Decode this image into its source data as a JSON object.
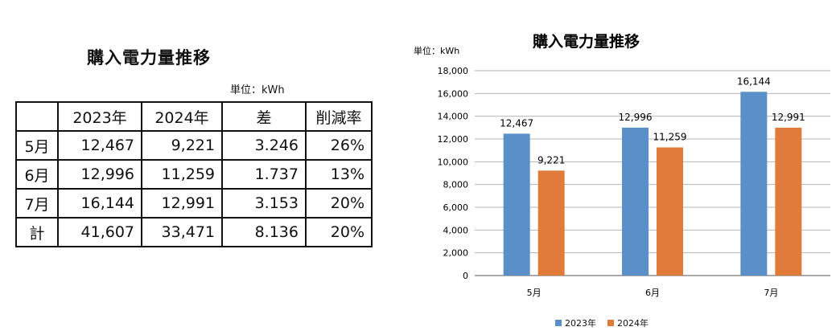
{
  "table": {
    "title": "購入電力量推移",
    "unit": "単位：kWh",
    "headers": [
      "",
      "2023年",
      "2024年",
      "差",
      "削減率"
    ],
    "rows": [
      [
        "5月",
        "12,467",
        "9,221",
        "3.246",
        "26%"
      ],
      [
        "6月",
        "12,996",
        "11,259",
        "1.737",
        "13%"
      ],
      [
        "7月",
        "16,144",
        "12,991",
        "3.153",
        "20%"
      ],
      [
        "計",
        "41,607",
        "33,471",
        "8.136",
        "20%"
      ]
    ]
  },
  "chart_data": {
    "type": "bar",
    "title": "購入電力量推移",
    "unit_label": "単位：kWh",
    "categories": [
      "5月",
      "6月",
      "7月"
    ],
    "series": [
      {
        "name": "2023年",
        "color": "#5b8fc7",
        "values": [
          12467,
          12996,
          16144
        ],
        "labels": [
          "12,467",
          "12,996",
          "16,144"
        ]
      },
      {
        "name": "2024年",
        "color": "#e07b39",
        "values": [
          9221,
          11259,
          12991
        ],
        "labels": [
          "9,221",
          "11,259",
          "12,991"
        ]
      }
    ],
    "ylim": [
      0,
      18000
    ],
    "yticks": [
      "0",
      "2,000",
      "4,000",
      "6,000",
      "8,000",
      "10,000",
      "12,000",
      "14,000",
      "16,000",
      "18,000"
    ],
    "grid": true,
    "legend_position": "bottom"
  }
}
